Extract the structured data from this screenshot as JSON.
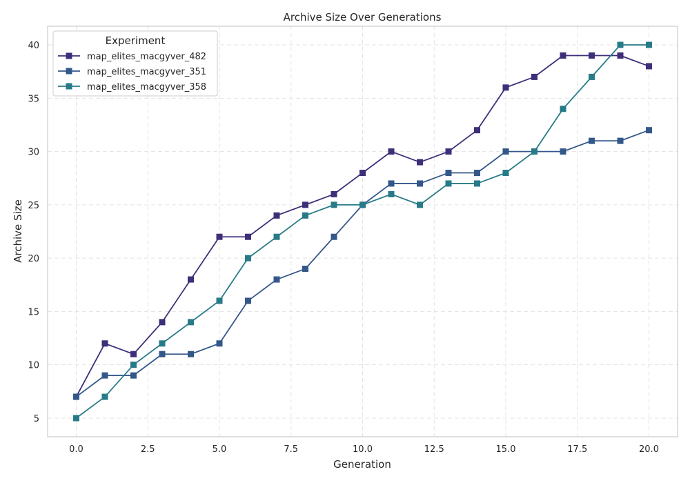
{
  "chart_data": {
    "type": "line",
    "title": "Archive Size Over Generations",
    "xlabel": "Generation",
    "ylabel": "Archive Size",
    "xlim": [
      -1,
      21
    ],
    "ylim": [
      3.25,
      41.75
    ],
    "xticks": [
      0.0,
      2.5,
      5.0,
      7.5,
      10.0,
      12.5,
      15.0,
      17.5,
      20.0
    ],
    "xtick_labels": [
      "0.0",
      "2.5",
      "5.0",
      "7.5",
      "10.0",
      "12.5",
      "15.0",
      "17.5",
      "20.0"
    ],
    "yticks": [
      5,
      10,
      15,
      20,
      25,
      30,
      35,
      40
    ],
    "ytick_labels": [
      "5",
      "10",
      "15",
      "20",
      "25",
      "30",
      "35",
      "40"
    ],
    "grid": true,
    "legend": {
      "title": "Experiment",
      "placement": "top-left"
    },
    "x": [
      0,
      1,
      2,
      3,
      4,
      5,
      6,
      7,
      8,
      9,
      10,
      11,
      12,
      13,
      14,
      15,
      16,
      17,
      18,
      19,
      20
    ],
    "series": [
      {
        "name": "map_elites_macgyver_482",
        "color": "#3f2f7a",
        "marker": "square",
        "values": [
          7,
          12,
          11,
          14,
          18,
          22,
          22,
          24,
          25,
          26,
          28,
          30,
          29,
          30,
          32,
          36,
          37,
          39,
          39,
          39,
          38
        ]
      },
      {
        "name": "map_elites_macgyver_351",
        "color": "#34578a",
        "marker": "square",
        "values": [
          7,
          9,
          9,
          11,
          11,
          12,
          16,
          18,
          19,
          22,
          25,
          27,
          27,
          28,
          28,
          30,
          30,
          30,
          31,
          31,
          32
        ]
      },
      {
        "name": "map_elites_macgyver_358",
        "color": "#277b88",
        "marker": "square",
        "values": [
          5,
          7,
          10,
          12,
          14,
          16,
          20,
          22,
          24,
          25,
          25,
          26,
          25,
          27,
          27,
          28,
          30,
          34,
          37,
          40,
          40
        ]
      }
    ]
  }
}
